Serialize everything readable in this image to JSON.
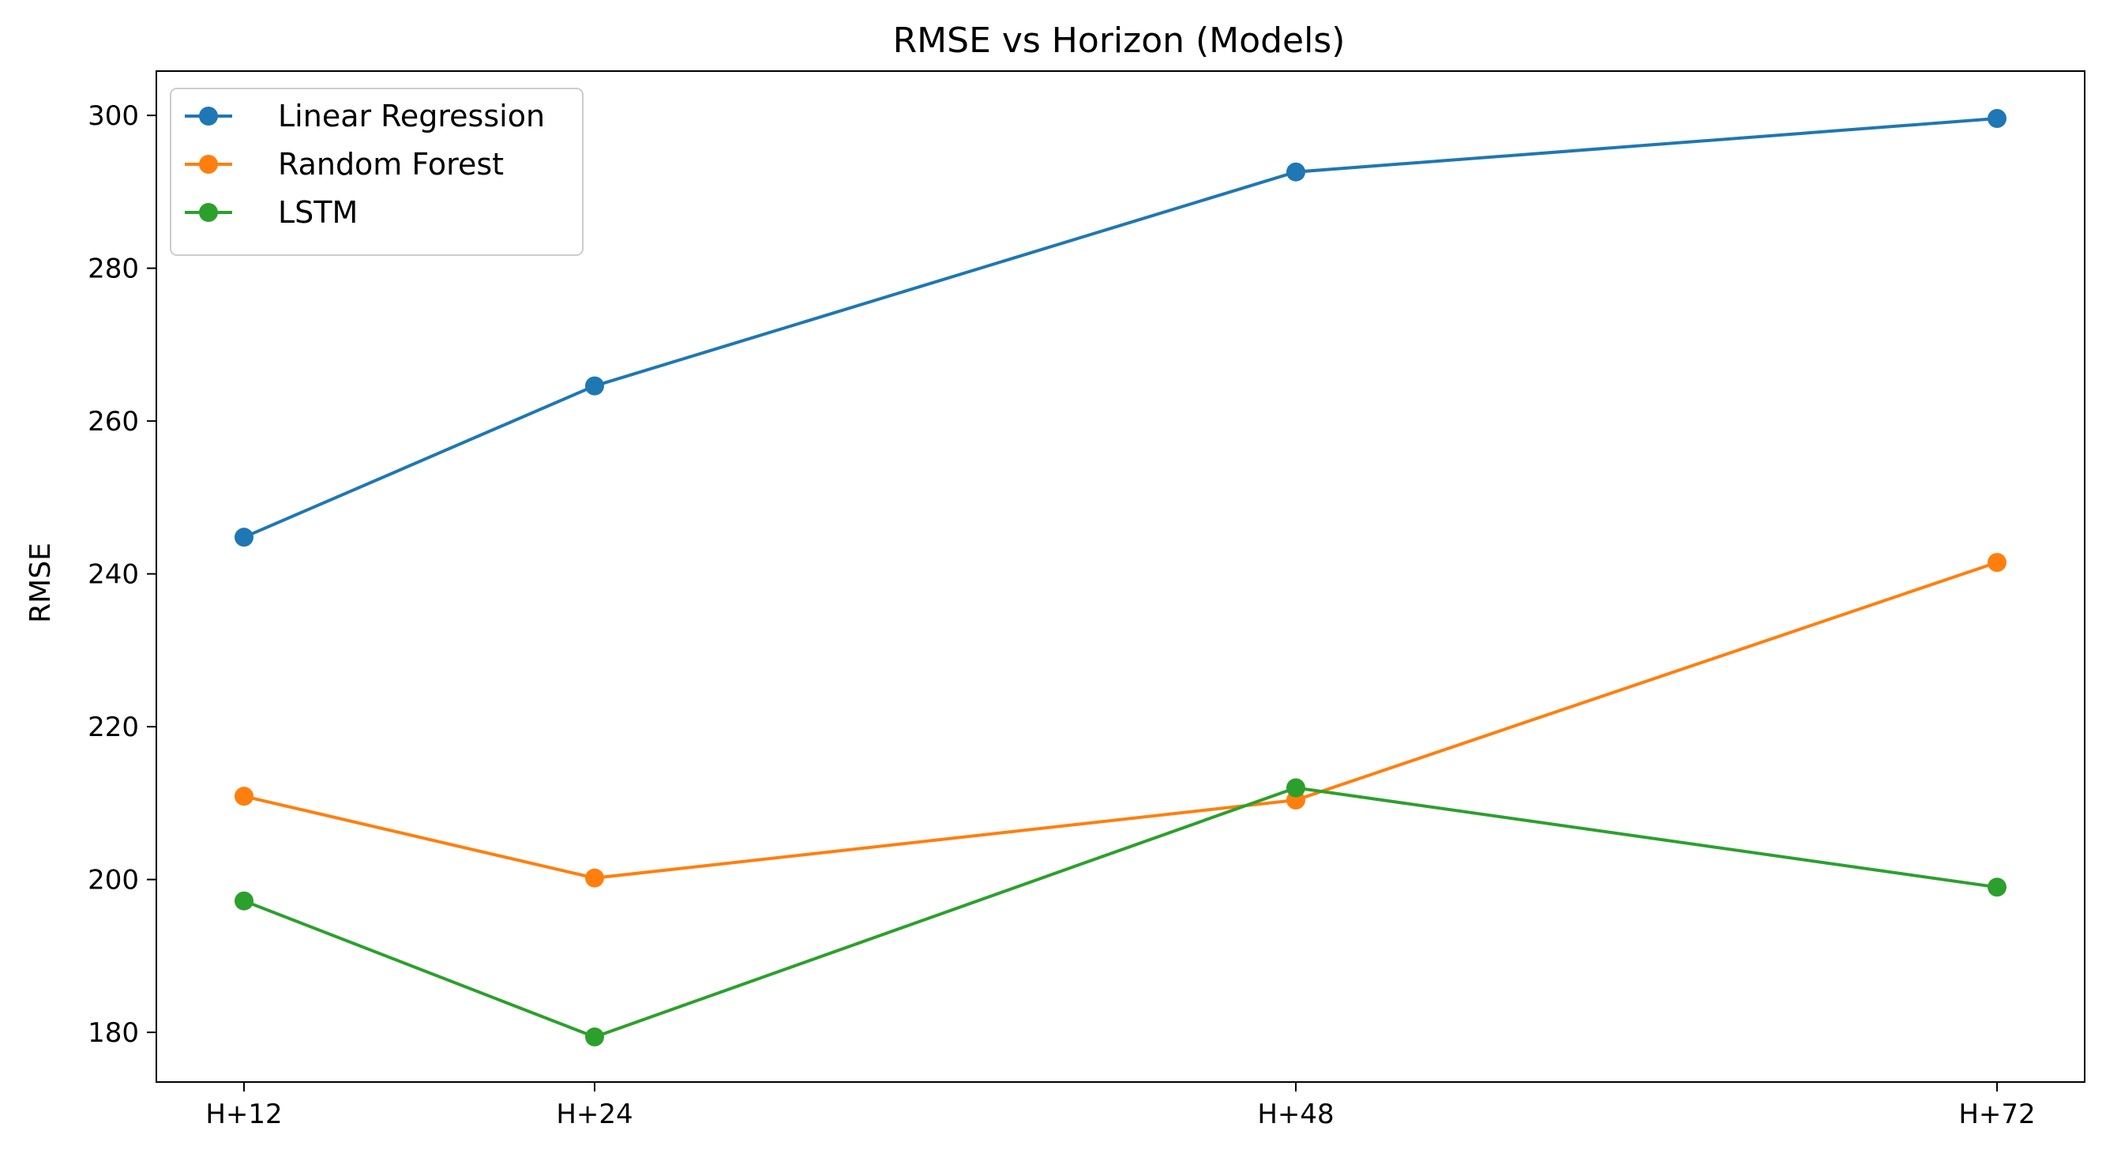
{
  "chart_data": {
    "type": "line",
    "title": "RMSE vs Horizon (Models)",
    "xlabel": "",
    "ylabel": "RMSE",
    "x": [
      12,
      24,
      48,
      72
    ],
    "categories": [
      "H+12",
      "H+24",
      "H+48",
      "H+72"
    ],
    "ylim": [
      173.5,
      305.8
    ],
    "yticks": [
      180,
      200,
      220,
      240,
      260,
      280,
      300
    ],
    "grid": false,
    "legend_position": "top-left",
    "series": [
      {
        "name": "Linear Regression",
        "color": "#1f77b4",
        "values": [
          244.8,
          264.6,
          292.6,
          299.6
        ]
      },
      {
        "name": "Random Forest",
        "color": "#ff7f0e",
        "values": [
          210.9,
          200.2,
          210.4,
          241.5
        ]
      },
      {
        "name": "LSTM",
        "color": "#2ca02c",
        "values": [
          197.2,
          179.4,
          212.0,
          199.0
        ]
      }
    ]
  }
}
